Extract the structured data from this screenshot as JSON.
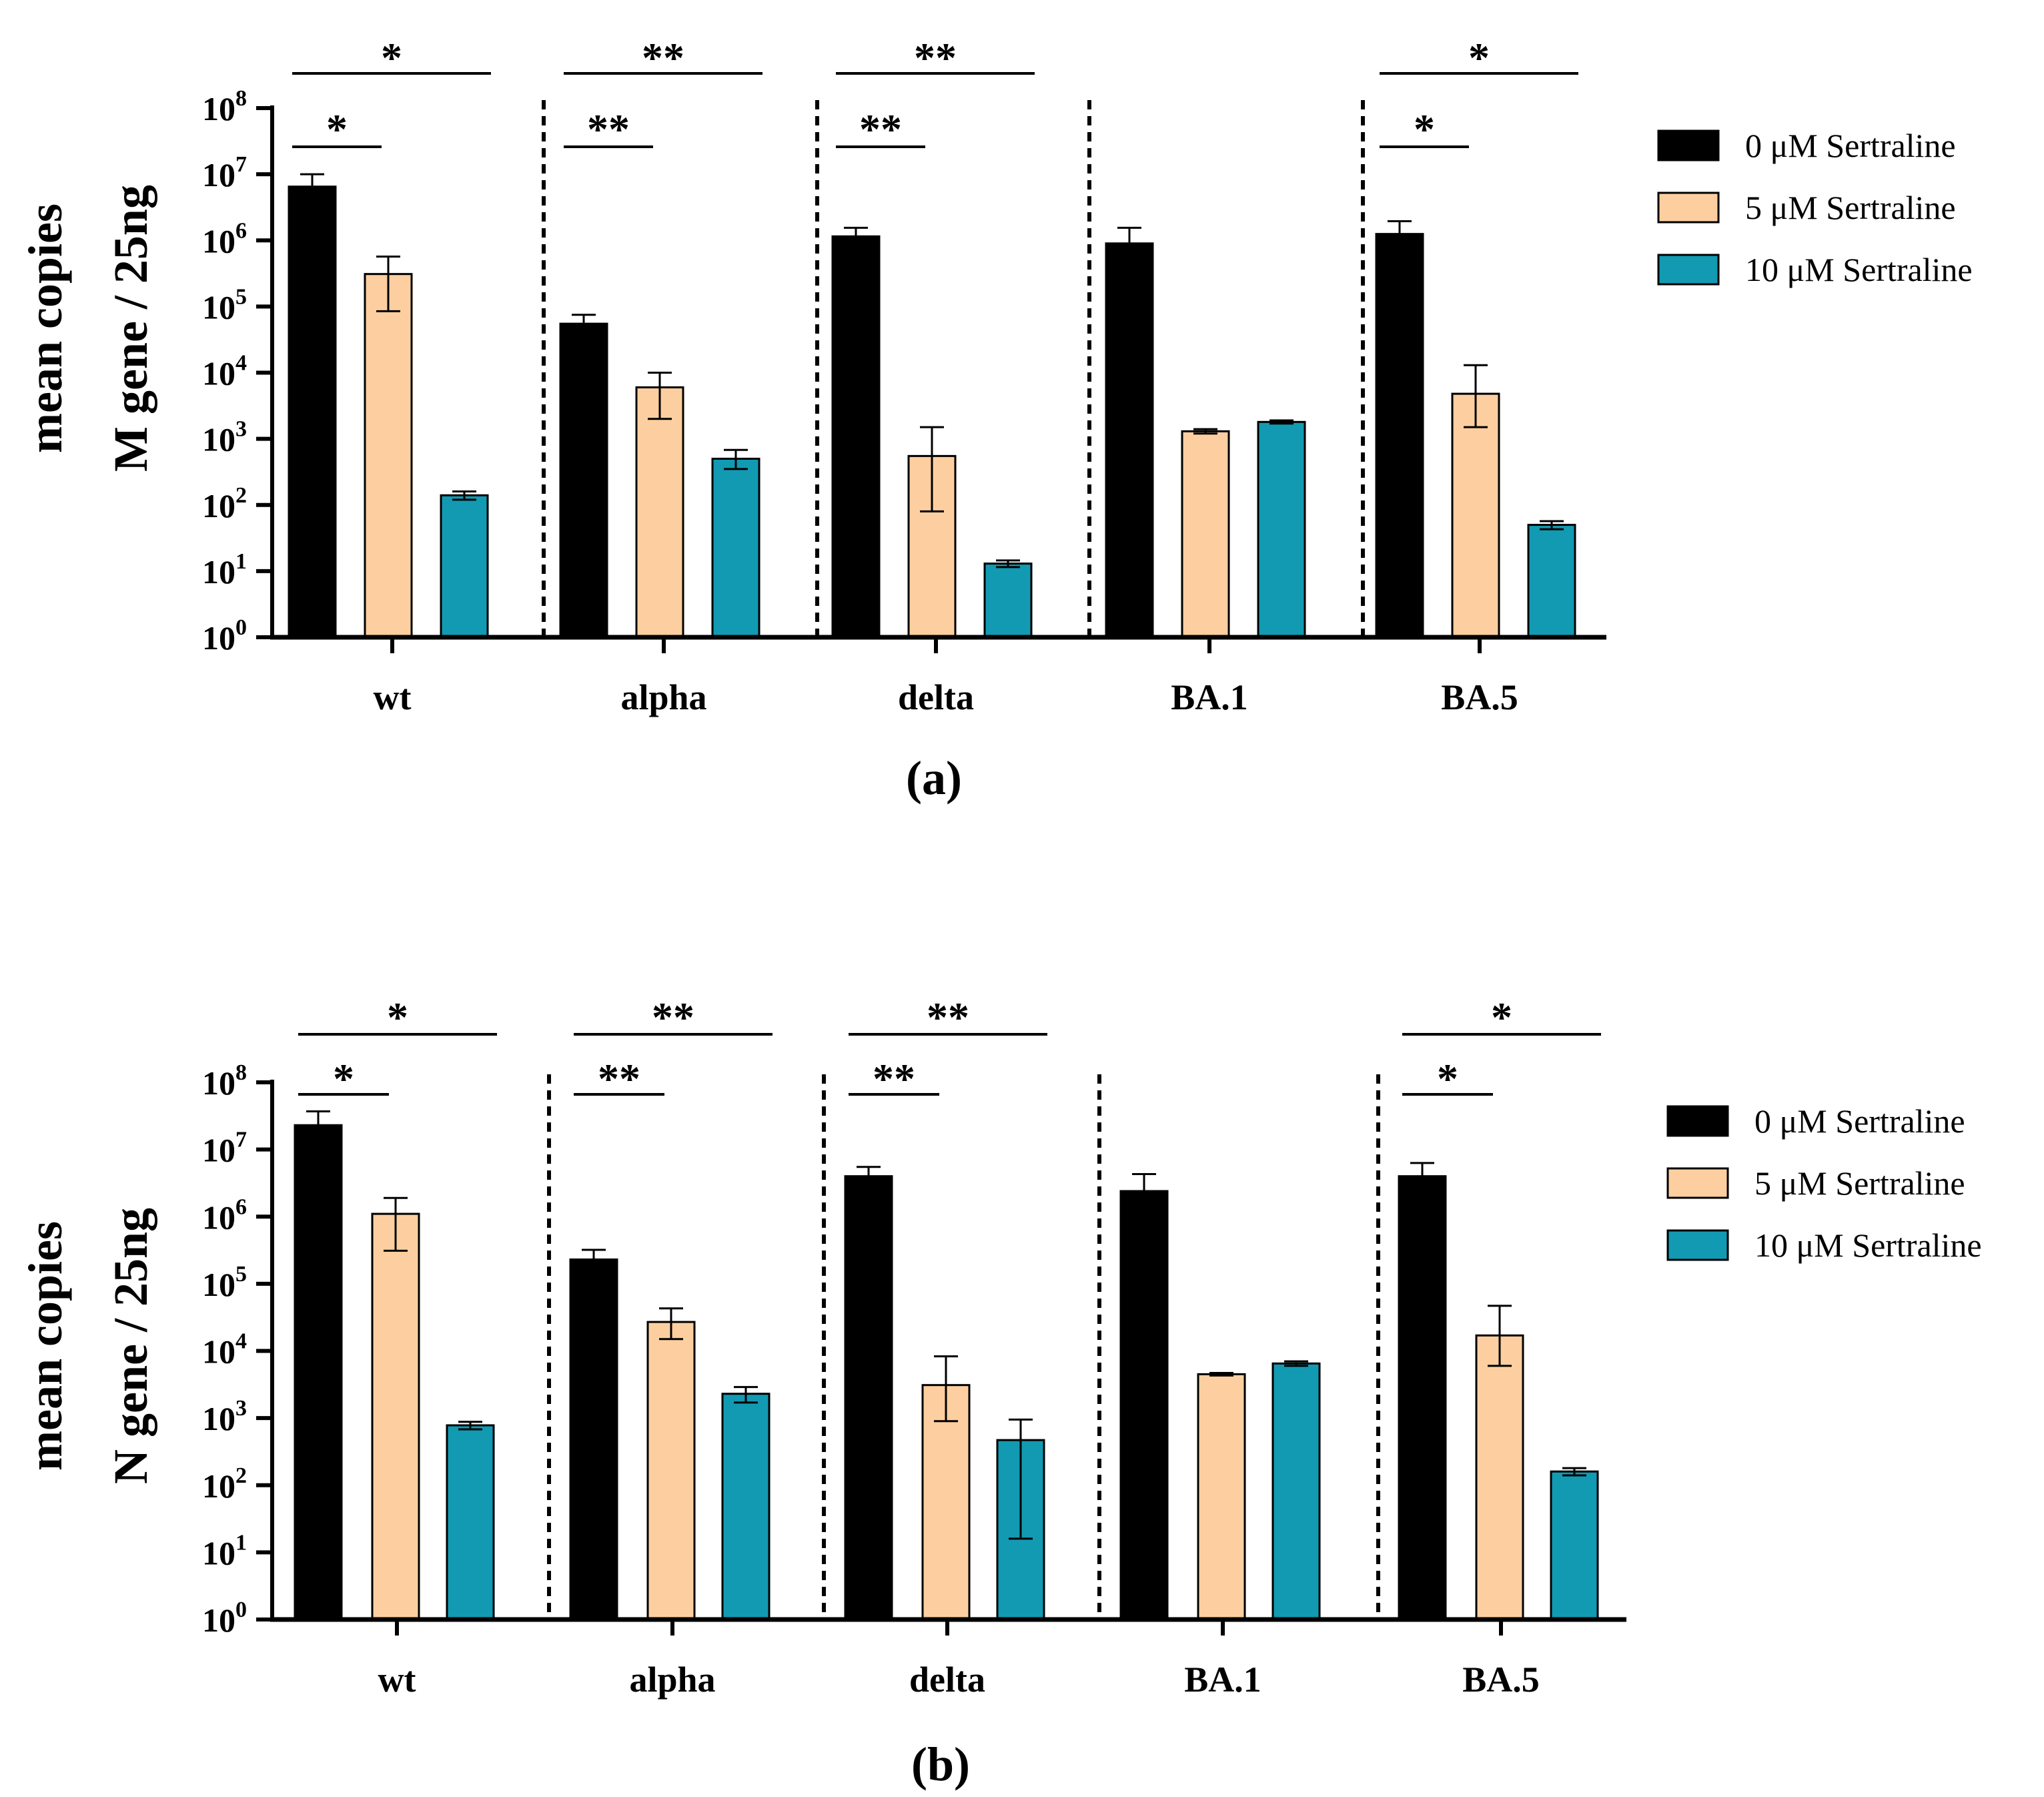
{
  "legend": [
    {
      "label": "0 μM Sertraline",
      "color": "#000000"
    },
    {
      "label": "5 μM Sertraline",
      "color": "#FDCFA0"
    },
    {
      "label": "10 μM Sertraline",
      "color": "#129AB3"
    }
  ],
  "chart_data": [
    {
      "type": "bar",
      "panel_label": "(a)",
      "ylabel_lines": [
        "mean copies",
        "M gene / 25ng"
      ],
      "yscale": "log",
      "ylim": [
        1,
        100000000
      ],
      "yticks": [
        {
          "base": "10",
          "exp": "0"
        },
        {
          "base": "10",
          "exp": "1"
        },
        {
          "base": "10",
          "exp": "2"
        },
        {
          "base": "10",
          "exp": "3"
        },
        {
          "base": "10",
          "exp": "4"
        },
        {
          "base": "10",
          "exp": "5"
        },
        {
          "base": "10",
          "exp": "6"
        },
        {
          "base": "10",
          "exp": "7"
        },
        {
          "base": "10",
          "exp": "8"
        }
      ],
      "categories": [
        "wt",
        "alpha",
        "delta",
        "BA.1",
        "BA.5"
      ],
      "series": [
        {
          "name": "0 μM Sertraline",
          "color": "#000000",
          "values": [
            6500000,
            55000,
            1150000,
            900000,
            1250000
          ],
          "err_low": [
            4600000,
            41000,
            850000,
            520000,
            800000
          ],
          "err_high": [
            10000000,
            75000,
            1550000,
            1550000,
            1950000
          ]
        },
        {
          "name": "5 μM Sertraline",
          "color": "#FDCFA0",
          "values": [
            310000,
            6000,
            550,
            1300,
            4800
          ],
          "err_low": [
            85000,
            2000,
            80,
            1200,
            1500
          ],
          "err_high": [
            570000,
            10000,
            1500,
            1400,
            13000
          ]
        },
        {
          "name": "10 μM Sertraline",
          "color": "#129AB3",
          "values": [
            140,
            500,
            13,
            1800,
            50
          ],
          "err_low": [
            120,
            350,
            11.5,
            1700,
            43
          ],
          "err_high": [
            160,
            680,
            14.5,
            1900,
            57
          ]
        }
      ],
      "significance": [
        {
          "category": "wt",
          "compare": [
            0,
            1
          ],
          "label": "*"
        },
        {
          "category": "wt",
          "compare": [
            0,
            2
          ],
          "label": "*"
        },
        {
          "category": "alpha",
          "compare": [
            0,
            1
          ],
          "label": "**"
        },
        {
          "category": "alpha",
          "compare": [
            0,
            2
          ],
          "label": "**"
        },
        {
          "category": "delta",
          "compare": [
            0,
            1
          ],
          "label": "**"
        },
        {
          "category": "delta",
          "compare": [
            0,
            2
          ],
          "label": "**"
        },
        {
          "category": "BA.5",
          "compare": [
            0,
            1
          ],
          "label": "*"
        },
        {
          "category": "BA.5",
          "compare": [
            0,
            2
          ],
          "label": "*"
        }
      ]
    },
    {
      "type": "bar",
      "panel_label": "(b)",
      "ylabel_lines": [
        "mean copies",
        "N gene / 25ng"
      ],
      "yscale": "log",
      "ylim": [
        1,
        100000000
      ],
      "yticks": [
        {
          "base": "10",
          "exp": "0"
        },
        {
          "base": "10",
          "exp": "1"
        },
        {
          "base": "10",
          "exp": "2"
        },
        {
          "base": "10",
          "exp": "3"
        },
        {
          "base": "10",
          "exp": "4"
        },
        {
          "base": "10",
          "exp": "5"
        },
        {
          "base": "10",
          "exp": "6"
        },
        {
          "base": "10",
          "exp": "7"
        },
        {
          "base": "10",
          "exp": "8"
        }
      ],
      "categories": [
        "wt",
        "alpha",
        "delta",
        "BA.1",
        "BA.5"
      ],
      "series": [
        {
          "name": "0 μM Sertraline",
          "color": "#000000",
          "values": [
            23000000,
            230000,
            4000000,
            2400000,
            4000000
          ],
          "err_low": [
            16000000,
            170000,
            3100000,
            1600000,
            2700000
          ],
          "err_high": [
            37000000,
            320000,
            5500000,
            4300000,
            6300000
          ]
        },
        {
          "name": "5 μM Sertraline",
          "color": "#FDCFA0",
          "values": [
            1100000,
            27000,
            3100,
            4500,
            17000
          ],
          "err_low": [
            310000,
            15000,
            900,
            4300,
            6000
          ],
          "err_high": [
            1900000,
            43000,
            8300,
            4700,
            47000
          ]
        },
        {
          "name": "10 μM Sertraline",
          "color": "#129AB3",
          "values": [
            780,
            2300,
            470,
            6500,
            160
          ],
          "err_low": [
            680,
            1700,
            16,
            6000,
            140
          ],
          "err_high": [
            880,
            2900,
            950,
            7000,
            180
          ]
        }
      ],
      "significance": [
        {
          "category": "wt",
          "compare": [
            0,
            1
          ],
          "label": "*"
        },
        {
          "category": "wt",
          "compare": [
            0,
            2
          ],
          "label": "*"
        },
        {
          "category": "alpha",
          "compare": [
            0,
            1
          ],
          "label": "**"
        },
        {
          "category": "alpha",
          "compare": [
            0,
            2
          ],
          "label": "**"
        },
        {
          "category": "delta",
          "compare": [
            0,
            1
          ],
          "label": "**"
        },
        {
          "category": "delta",
          "compare": [
            0,
            2
          ],
          "label": "**"
        },
        {
          "category": "BA.5",
          "compare": [
            0,
            1
          ],
          "label": "*"
        },
        {
          "category": "BA.5",
          "compare": [
            0,
            2
          ],
          "label": "*"
        }
      ]
    }
  ]
}
